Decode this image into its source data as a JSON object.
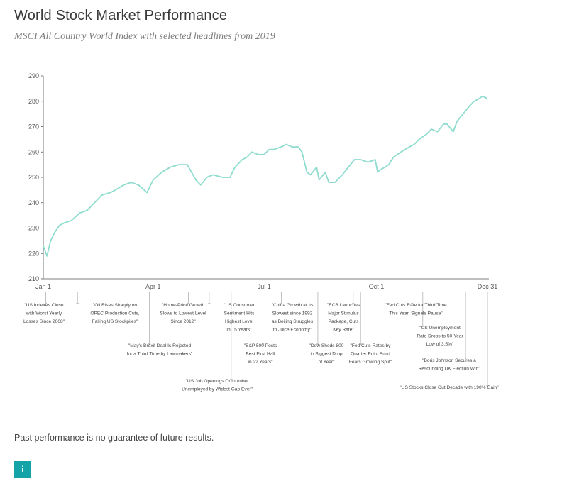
{
  "header": {
    "title": "World Stock Market Performance",
    "subtitle": "MSCI All Country World Index with selected headlines from 2019"
  },
  "footer": {
    "disclaimer": "Past performance is no guarantee of future results.",
    "info_label": "i"
  },
  "colors": {
    "line": "#8fdccf",
    "axis": "#555555",
    "accent": "#14a3a6"
  },
  "chart_data": {
    "type": "line",
    "title": "World Stock Market Performance",
    "subtitle": "MSCI All Country World Index with selected headlines from 2019",
    "ylim": [
      210,
      290
    ],
    "yticks": [
      210,
      220,
      230,
      240,
      250,
      260,
      270,
      280,
      290
    ],
    "xdomain": [
      "2019-01-01",
      "2019-12-31"
    ],
    "xticks": [
      {
        "date": "2019-01-01",
        "label": "Jan 1"
      },
      {
        "date": "2019-04-01",
        "label": "Apr 1"
      },
      {
        "date": "2019-07-01",
        "label": "Jul 1"
      },
      {
        "date": "2019-10-01",
        "label": "Oct 1"
      },
      {
        "date": "2019-12-31",
        "label": "Dec 31"
      }
    ],
    "grid": false,
    "series": [
      {
        "points": [
          [
            "2019-01-01",
            223
          ],
          [
            "2019-01-04",
            219
          ],
          [
            "2019-01-07",
            225
          ],
          [
            "2019-01-10",
            228
          ],
          [
            "2019-01-14",
            231
          ],
          [
            "2019-01-18",
            232
          ],
          [
            "2019-01-24",
            233
          ],
          [
            "2019-01-31",
            236
          ],
          [
            "2019-02-06",
            237
          ],
          [
            "2019-02-12",
            240
          ],
          [
            "2019-02-18",
            243
          ],
          [
            "2019-02-25",
            244
          ],
          [
            "2019-03-01",
            245
          ],
          [
            "2019-03-08",
            247
          ],
          [
            "2019-03-14",
            248
          ],
          [
            "2019-03-20",
            247
          ],
          [
            "2019-03-27",
            244
          ],
          [
            "2019-04-01",
            249
          ],
          [
            "2019-04-08",
            252
          ],
          [
            "2019-04-15",
            254
          ],
          [
            "2019-04-22",
            255
          ],
          [
            "2019-04-29",
            255
          ],
          [
            "2019-05-06",
            249
          ],
          [
            "2019-05-10",
            247
          ],
          [
            "2019-05-15",
            250
          ],
          [
            "2019-05-20",
            251
          ],
          [
            "2019-05-28",
            250
          ],
          [
            "2019-06-03",
            250
          ],
          [
            "2019-06-07",
            254
          ],
          [
            "2019-06-13",
            257
          ],
          [
            "2019-06-17",
            258
          ],
          [
            "2019-06-21",
            260
          ],
          [
            "2019-06-26",
            259
          ],
          [
            "2019-07-01",
            259
          ],
          [
            "2019-07-05",
            261
          ],
          [
            "2019-07-09",
            261
          ],
          [
            "2019-07-15",
            262
          ],
          [
            "2019-07-19",
            263
          ],
          [
            "2019-07-24",
            262
          ],
          [
            "2019-07-29",
            262
          ],
          [
            "2019-08-01",
            260
          ],
          [
            "2019-08-05",
            252
          ],
          [
            "2019-08-08",
            251
          ],
          [
            "2019-08-13",
            254
          ],
          [
            "2019-08-15",
            249
          ],
          [
            "2019-08-20",
            252
          ],
          [
            "2019-08-23",
            248
          ],
          [
            "2019-08-28",
            248
          ],
          [
            "2019-09-03",
            251
          ],
          [
            "2019-09-08",
            254
          ],
          [
            "2019-09-13",
            257
          ],
          [
            "2019-09-18",
            257
          ],
          [
            "2019-09-24",
            256
          ],
          [
            "2019-09-30",
            257
          ],
          [
            "2019-10-02",
            252
          ],
          [
            "2019-10-04",
            253
          ],
          [
            "2019-10-08",
            254
          ],
          [
            "2019-10-11",
            255
          ],
          [
            "2019-10-15",
            258
          ],
          [
            "2019-10-21",
            260
          ],
          [
            "2019-10-28",
            262
          ],
          [
            "2019-11-01",
            263
          ],
          [
            "2019-11-05",
            265
          ],
          [
            "2019-11-11",
            267
          ],
          [
            "2019-11-15",
            269
          ],
          [
            "2019-11-20",
            268
          ],
          [
            "2019-11-25",
            271
          ],
          [
            "2019-11-28",
            271
          ],
          [
            "2019-12-03",
            268
          ],
          [
            "2019-12-06",
            272
          ],
          [
            "2019-12-11",
            275
          ],
          [
            "2019-12-16",
            278
          ],
          [
            "2019-12-20",
            280
          ],
          [
            "2019-12-24",
            281
          ],
          [
            "2019-12-27",
            282
          ],
          [
            "2019-12-31",
            281
          ]
        ]
      }
    ],
    "annotations": [
      {
        "lines": [
          "\"US Indexes Close",
          "with Worst Yearly",
          "Losses Since 2008\""
        ],
        "date": "2019-01-03"
      },
      {
        "lines": [
          "\"Oil Rises Sharply on",
          "OPEC Production Cuts,",
          "Falling US Stockpiles\""
        ],
        "date": "2019-01-29"
      },
      {
        "lines": [
          "\"May's Brexit Deal Is Rejected",
          "for a Third Time by Lawmakers\""
        ],
        "date": "2019-03-29"
      },
      {
        "lines": [
          "\"Home-Price Growth",
          "Slows to Lowest Level",
          "Since 2012\""
        ],
        "date": "2019-04-30"
      },
      {
        "lines": [
          "\"US Job Openings Outnumber",
          "Unemployed by Widest Gap Ever\""
        ],
        "date": "2019-06-04"
      },
      {
        "lines": [
          "\"US Consumer",
          "Sentiment Hits",
          "Highest Level",
          "in 15 Years\""
        ],
        "date": "2019-05-17"
      },
      {
        "lines": [
          "\"S&P 500 Posts",
          "Best First Half",
          "in 22 Years\""
        ],
        "date": "2019-06-30"
      },
      {
        "lines": [
          "\"China Growth at Its",
          "Slowest since 1992",
          "as Beijing Struggles",
          "to Juice Economy\""
        ],
        "date": "2019-07-15"
      },
      {
        "lines": [
          "\"Dow Sheds 800",
          "in Biggest Drop",
          "of Year\""
        ],
        "date": "2019-08-14"
      },
      {
        "lines": [
          "\"ECB Launches",
          "Major Stimulus",
          "Package, Cuts",
          "Key Rate\""
        ],
        "date": "2019-09-12"
      },
      {
        "lines": [
          "\"Fed Cuts Rates by",
          "Quarter Point Amid",
          "Fears Growing Split\""
        ],
        "date": "2019-09-18"
      },
      {
        "lines": [
          "\"Fed Cuts Rate for Third Time",
          "This Year, Signals Pause\""
        ],
        "date": "2019-10-30"
      },
      {
        "lines": [
          "\"US Unemployment",
          "Rate Drops to 50-Year",
          "Low of 3.5%\""
        ],
        "date": "2019-11-08"
      },
      {
        "lines": [
          "\"Boris Johnson Secures a",
          "Resounding UK Election Win\""
        ],
        "date": "2019-12-13"
      },
      {
        "lines": [
          "\"US Stocks Close Out Decade with 190% Gain\""
        ],
        "date": "2019-12-31"
      }
    ]
  }
}
